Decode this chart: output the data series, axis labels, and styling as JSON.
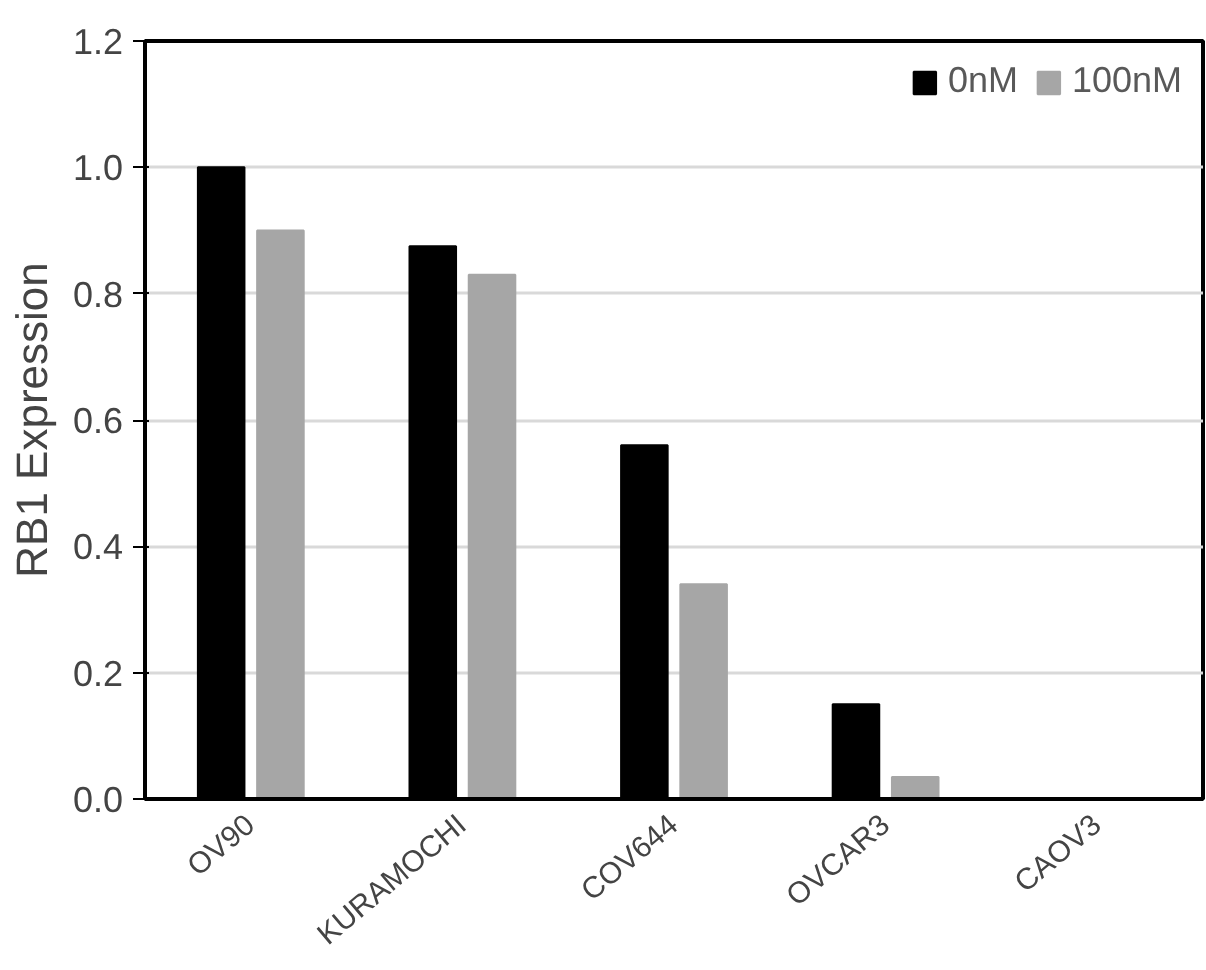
{
  "chart_data": {
    "type": "bar",
    "ylabel": "RB1 Expression",
    "categories": [
      "OV90",
      "KURAMOCHI",
      "COV644",
      "OVCAR3",
      "CAOV3"
    ],
    "series": [
      {
        "name": "0nM",
        "color": "#000000",
        "values": [
          1.0,
          0.875,
          0.56,
          0.15,
          0
        ]
      },
      {
        "name": "100nM",
        "color": "#a6a6a6",
        "values": [
          0.9,
          0.83,
          0.34,
          0.035,
          0
        ]
      }
    ],
    "ylim": [
      0,
      1.2
    ],
    "yticks": [
      {
        "value": 0,
        "label": "0.0"
      },
      {
        "value": 0.2,
        "label": "0.2"
      },
      {
        "value": 0.4,
        "label": "0.4"
      },
      {
        "value": 0.6,
        "label": "0.6"
      },
      {
        "value": 0.8,
        "label": "0.8"
      },
      {
        "value": 1.0,
        "label": "1.0"
      },
      {
        "value": 1.2,
        "label": "1.2"
      }
    ],
    "grid": "y",
    "legend": "top right"
  }
}
